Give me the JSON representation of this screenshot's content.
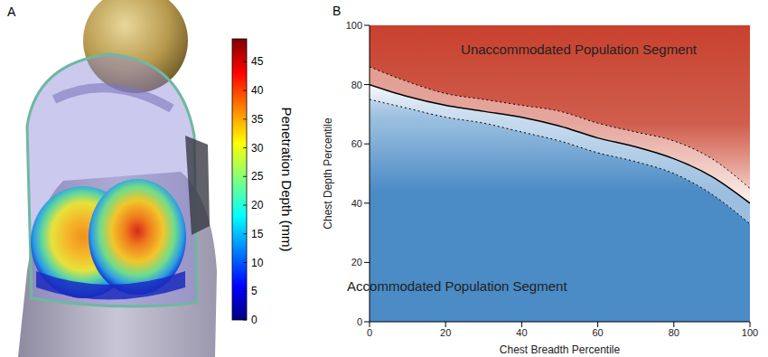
{
  "chart_data": [
    {
      "type": "surface_render",
      "panel_label": "A",
      "colorbar": {
        "label": "Penetration Depth (mm)",
        "range": [
          0,
          49
        ],
        "ticks": [
          0,
          5,
          10,
          15,
          20,
          25,
          30,
          35,
          40,
          45
        ]
      }
    },
    {
      "type": "contour_regions",
      "panel_label": "B",
      "x_label": "Chest Breadth Percentile",
      "y_label": "Chest Depth Percentile",
      "xlim": [
        0,
        100
      ],
      "ylim": [
        0,
        100
      ],
      "xticks": [
        0,
        20,
        40,
        60,
        80,
        100
      ],
      "yticks": [
        0,
        20,
        40,
        60,
        80,
        100
      ],
      "x": [
        0,
        10,
        20,
        30,
        40,
        50,
        60,
        70,
        80,
        90,
        100
      ],
      "series": [
        {
          "values": [
            80,
            76,
            73,
            71,
            69,
            66,
            62,
            59,
            55,
            49,
            40
          ],
          "color": "#000000",
          "line_style": "solid"
        },
        {
          "values": [
            86,
            81,
            77,
            75,
            73,
            71,
            67,
            64,
            61,
            55,
            45
          ],
          "color": "#000000",
          "line_style": "dotted"
        },
        {
          "values": [
            75,
            72,
            69,
            67,
            64,
            61,
            57,
            54,
            50,
            43,
            33
          ],
          "color": "#000000",
          "line_style": "dotted"
        }
      ],
      "regions": [
        {
          "label": "Unaccommodated Population Segment",
          "color": "#c8412e",
          "side": "above"
        },
        {
          "label": "Accommodated Population Segment",
          "color": "#4b8bc6",
          "side": "below"
        }
      ]
    }
  ]
}
